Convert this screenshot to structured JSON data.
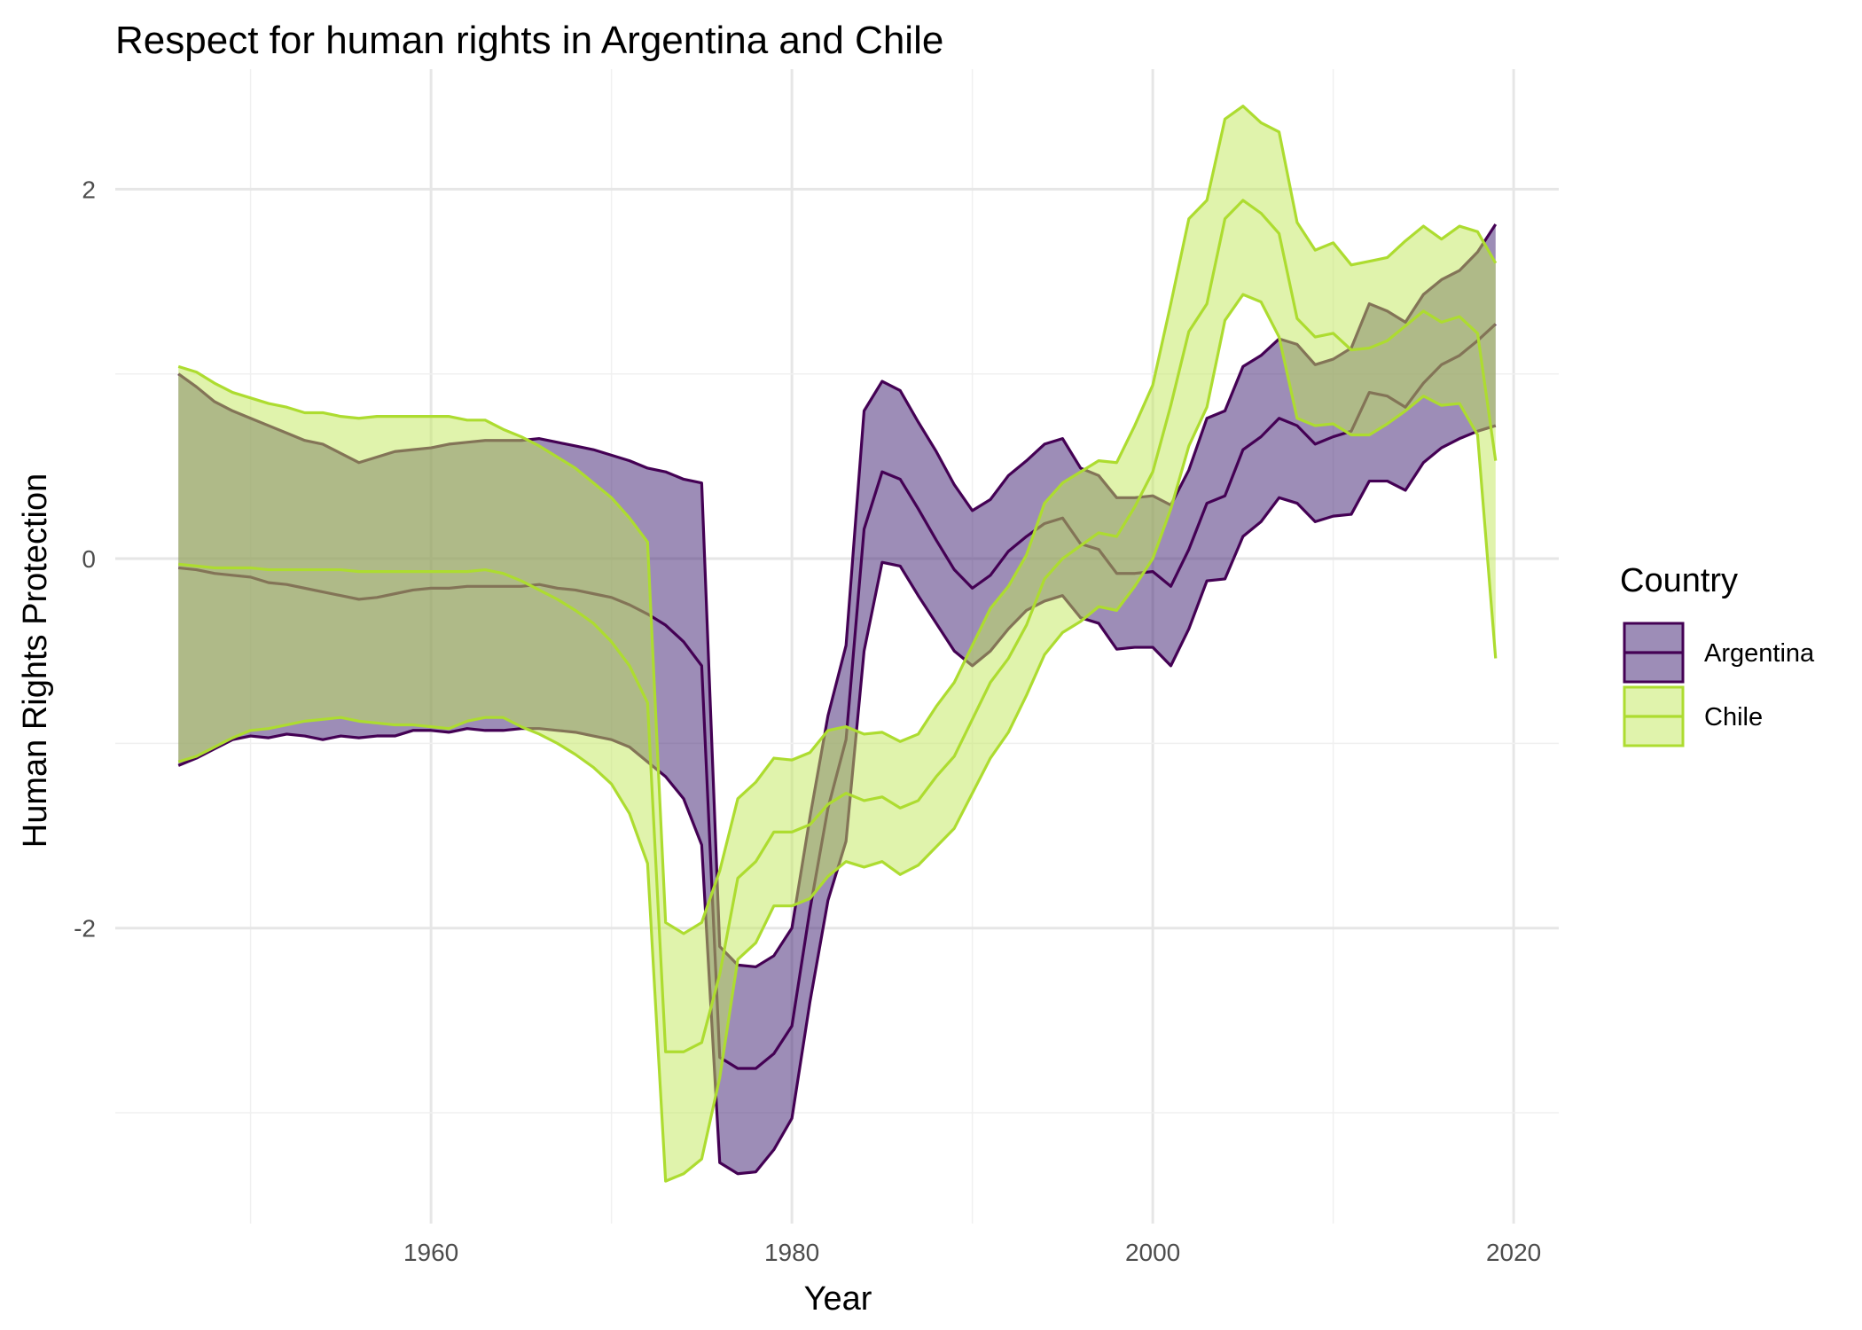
{
  "chart_data": {
    "type": "area",
    "title": "Respect for human rights in Argentina and Chile",
    "xlabel": "Year",
    "ylabel": "Human Rights Protection",
    "xlim": [
      1942.5,
      2022.5
    ],
    "ylim": [
      -3.6,
      2.65
    ],
    "x_ticks": [
      1960,
      1980,
      2000,
      2020
    ],
    "y_ticks": [
      -2,
      0,
      2
    ],
    "x_tick_labels": [
      "1960",
      "1980",
      "2000",
      "2020"
    ],
    "y_tick_labels": [
      "-2",
      "0",
      "2"
    ],
    "grid": true,
    "legend": {
      "title": "Country",
      "position": "right"
    },
    "series": [
      {
        "name": "Argentina",
        "color": "#440154",
        "fill": "#3b1c6f",
        "points": [
          [
            1946,
            -0.05,
            -1.12,
            1.0
          ],
          [
            1947,
            -0.06,
            -1.08,
            0.93
          ],
          [
            1948,
            -0.08,
            -1.03,
            0.85
          ],
          [
            1949,
            -0.09,
            -0.98,
            0.8
          ],
          [
            1950,
            -0.1,
            -0.96,
            0.76
          ],
          [
            1951,
            -0.13,
            -0.97,
            0.72
          ],
          [
            1952,
            -0.14,
            -0.95,
            0.68
          ],
          [
            1953,
            -0.16,
            -0.96,
            0.64
          ],
          [
            1954,
            -0.18,
            -0.98,
            0.62
          ],
          [
            1955,
            -0.2,
            -0.96,
            0.57
          ],
          [
            1956,
            -0.22,
            -0.97,
            0.52
          ],
          [
            1957,
            -0.21,
            -0.96,
            0.55
          ],
          [
            1958,
            -0.19,
            -0.96,
            0.58
          ],
          [
            1959,
            -0.17,
            -0.93,
            0.59
          ],
          [
            1960,
            -0.16,
            -0.93,
            0.6
          ],
          [
            1961,
            -0.16,
            -0.94,
            0.62
          ],
          [
            1962,
            -0.15,
            -0.92,
            0.63
          ],
          [
            1963,
            -0.15,
            -0.93,
            0.64
          ],
          [
            1964,
            -0.15,
            -0.93,
            0.64
          ],
          [
            1965,
            -0.15,
            -0.92,
            0.64
          ],
          [
            1966,
            -0.14,
            -0.92,
            0.65
          ],
          [
            1967,
            -0.16,
            -0.93,
            0.63
          ],
          [
            1968,
            -0.17,
            -0.94,
            0.61
          ],
          [
            1969,
            -0.19,
            -0.96,
            0.59
          ],
          [
            1970,
            -0.21,
            -0.98,
            0.56
          ],
          [
            1971,
            -0.25,
            -1.02,
            0.53
          ],
          [
            1972,
            -0.3,
            -1.1,
            0.49
          ],
          [
            1973,
            -0.36,
            -1.18,
            0.47
          ],
          [
            1974,
            -0.45,
            -1.3,
            0.43
          ],
          [
            1975,
            -0.58,
            -1.55,
            0.41
          ],
          [
            1976,
            -2.7,
            -3.27,
            -2.1
          ],
          [
            1977,
            -2.76,
            -3.33,
            -2.2
          ],
          [
            1978,
            -2.76,
            -3.32,
            -2.21
          ],
          [
            1979,
            -2.68,
            -3.2,
            -2.15
          ],
          [
            1980,
            -2.53,
            -3.03,
            -2.0
          ],
          [
            1981,
            -1.9,
            -2.4,
            -1.4
          ],
          [
            1982,
            -1.35,
            -1.85,
            -0.85
          ],
          [
            1983,
            -0.98,
            -1.53,
            -0.47
          ],
          [
            1984,
            0.16,
            -0.5,
            0.8
          ],
          [
            1985,
            0.47,
            -0.02,
            0.96
          ],
          [
            1986,
            0.43,
            -0.04,
            0.91
          ],
          [
            1987,
            0.27,
            -0.2,
            0.74
          ],
          [
            1988,
            0.1,
            -0.35,
            0.58
          ],
          [
            1989,
            -0.06,
            -0.5,
            0.4
          ],
          [
            1990,
            -0.16,
            -0.58,
            0.26
          ],
          [
            1991,
            -0.09,
            -0.5,
            0.32
          ],
          [
            1992,
            0.04,
            -0.38,
            0.45
          ],
          [
            1993,
            0.12,
            -0.28,
            0.53
          ],
          [
            1994,
            0.19,
            -0.23,
            0.62
          ],
          [
            1995,
            0.22,
            -0.2,
            0.65
          ],
          [
            1996,
            0.08,
            -0.32,
            0.49
          ],
          [
            1997,
            0.05,
            -0.35,
            0.45
          ],
          [
            1998,
            -0.08,
            -0.49,
            0.33
          ],
          [
            1999,
            -0.08,
            -0.48,
            0.33
          ],
          [
            2000,
            -0.07,
            -0.48,
            0.34
          ],
          [
            2001,
            -0.15,
            -0.58,
            0.29
          ],
          [
            2002,
            0.05,
            -0.38,
            0.48
          ],
          [
            2003,
            0.3,
            -0.12,
            0.76
          ],
          [
            2004,
            0.34,
            -0.11,
            0.8
          ],
          [
            2005,
            0.59,
            0.12,
            1.04
          ],
          [
            2006,
            0.66,
            0.2,
            1.1
          ],
          [
            2007,
            0.76,
            0.33,
            1.19
          ],
          [
            2008,
            0.72,
            0.3,
            1.16
          ],
          [
            2009,
            0.62,
            0.2,
            1.05
          ],
          [
            2010,
            0.66,
            0.23,
            1.08
          ],
          [
            2011,
            0.69,
            0.24,
            1.14
          ],
          [
            2012,
            0.9,
            0.42,
            1.38
          ],
          [
            2013,
            0.88,
            0.42,
            1.34
          ],
          [
            2014,
            0.82,
            0.37,
            1.28
          ],
          [
            2015,
            0.95,
            0.52,
            1.43
          ],
          [
            2016,
            1.05,
            0.6,
            1.51
          ],
          [
            2017,
            1.1,
            0.65,
            1.56
          ],
          [
            2018,
            1.18,
            0.69,
            1.66
          ],
          [
            2019,
            1.27,
            0.72,
            1.81
          ]
        ]
      },
      {
        "name": "Chile",
        "color": "#addc30",
        "fill": "#c2e85a",
        "points": [
          [
            1946,
            -0.03,
            -1.1,
            1.04
          ],
          [
            1947,
            -0.04,
            -1.07,
            1.01
          ],
          [
            1948,
            -0.05,
            -1.02,
            0.95
          ],
          [
            1949,
            -0.05,
            -0.97,
            0.9
          ],
          [
            1950,
            -0.05,
            -0.93,
            0.87
          ],
          [
            1951,
            -0.06,
            -0.92,
            0.84
          ],
          [
            1952,
            -0.06,
            -0.9,
            0.82
          ],
          [
            1953,
            -0.06,
            -0.88,
            0.79
          ],
          [
            1954,
            -0.06,
            -0.87,
            0.79
          ],
          [
            1955,
            -0.06,
            -0.86,
            0.77
          ],
          [
            1956,
            -0.07,
            -0.88,
            0.76
          ],
          [
            1957,
            -0.07,
            -0.89,
            0.77
          ],
          [
            1958,
            -0.07,
            -0.9,
            0.77
          ],
          [
            1959,
            -0.07,
            -0.9,
            0.77
          ],
          [
            1960,
            -0.07,
            -0.91,
            0.77
          ],
          [
            1961,
            -0.07,
            -0.92,
            0.77
          ],
          [
            1962,
            -0.07,
            -0.88,
            0.75
          ],
          [
            1963,
            -0.06,
            -0.86,
            0.75
          ],
          [
            1964,
            -0.08,
            -0.86,
            0.7
          ],
          [
            1965,
            -0.12,
            -0.91,
            0.66
          ],
          [
            1966,
            -0.17,
            -0.95,
            0.61
          ],
          [
            1967,
            -0.22,
            -1.0,
            0.55
          ],
          [
            1968,
            -0.28,
            -1.06,
            0.49
          ],
          [
            1969,
            -0.35,
            -1.13,
            0.41
          ],
          [
            1970,
            -0.45,
            -1.22,
            0.33
          ],
          [
            1971,
            -0.58,
            -1.38,
            0.22
          ],
          [
            1972,
            -0.78,
            -1.65,
            0.09
          ],
          [
            1973,
            -2.67,
            -3.37,
            -1.97
          ],
          [
            1974,
            -2.67,
            -3.33,
            -2.03
          ],
          [
            1975,
            -2.62,
            -3.25,
            -1.97
          ],
          [
            1976,
            -2.25,
            -2.81,
            -1.69
          ],
          [
            1977,
            -1.73,
            -2.17,
            -1.3
          ],
          [
            1978,
            -1.64,
            -2.08,
            -1.21
          ],
          [
            1979,
            -1.48,
            -1.88,
            -1.08
          ],
          [
            1980,
            -1.48,
            -1.88,
            -1.09
          ],
          [
            1981,
            -1.44,
            -1.84,
            -1.05
          ],
          [
            1982,
            -1.33,
            -1.72,
            -0.93
          ],
          [
            1983,
            -1.27,
            -1.64,
            -0.91
          ],
          [
            1984,
            -1.31,
            -1.67,
            -0.95
          ],
          [
            1985,
            -1.29,
            -1.64,
            -0.94
          ],
          [
            1986,
            -1.35,
            -1.71,
            -0.99
          ],
          [
            1987,
            -1.31,
            -1.66,
            -0.95
          ],
          [
            1988,
            -1.18,
            -1.56,
            -0.8
          ],
          [
            1989,
            -1.07,
            -1.46,
            -0.67
          ],
          [
            1990,
            -0.87,
            -1.27,
            -0.47
          ],
          [
            1991,
            -0.67,
            -1.08,
            -0.27
          ],
          [
            1992,
            -0.54,
            -0.94,
            -0.15
          ],
          [
            1993,
            -0.36,
            -0.74,
            0.02
          ],
          [
            1994,
            -0.11,
            -0.52,
            0.3
          ],
          [
            1995,
            0.0,
            -0.4,
            0.41
          ],
          [
            1996,
            0.07,
            -0.34,
            0.47
          ],
          [
            1997,
            0.14,
            -0.26,
            0.53
          ],
          [
            1998,
            0.12,
            -0.28,
            0.52
          ],
          [
            1999,
            0.28,
            -0.15,
            0.72
          ],
          [
            2000,
            0.47,
            0.0,
            0.94
          ],
          [
            2001,
            0.83,
            0.27,
            1.38
          ],
          [
            2002,
            1.23,
            0.61,
            1.84
          ],
          [
            2003,
            1.38,
            0.82,
            1.94
          ],
          [
            2004,
            1.84,
            1.29,
            2.38
          ],
          [
            2005,
            1.94,
            1.43,
            2.45
          ],
          [
            2006,
            1.87,
            1.39,
            2.36
          ],
          [
            2007,
            1.76,
            1.2,
            2.31
          ],
          [
            2008,
            1.3,
            0.76,
            1.82
          ],
          [
            2009,
            1.2,
            0.72,
            1.67
          ],
          [
            2010,
            1.22,
            0.73,
            1.71
          ],
          [
            2011,
            1.13,
            0.67,
            1.59
          ],
          [
            2012,
            1.14,
            0.67,
            1.61
          ],
          [
            2013,
            1.18,
            0.73,
            1.63
          ],
          [
            2014,
            1.26,
            0.8,
            1.72
          ],
          [
            2015,
            1.34,
            0.88,
            1.8
          ],
          [
            2016,
            1.28,
            0.83,
            1.73
          ],
          [
            2017,
            1.31,
            0.84,
            1.8
          ],
          [
            2018,
            1.22,
            0.67,
            1.77
          ],
          [
            2019,
            0.53,
            -0.54,
            1.6
          ]
        ]
      }
    ]
  }
}
